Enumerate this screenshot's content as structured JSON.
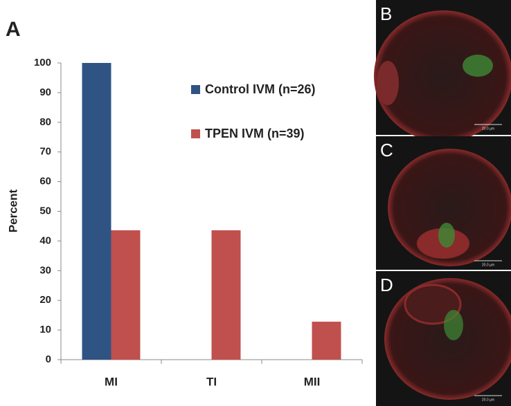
{
  "chart_data": {
    "type": "bar",
    "y_label": "Percent",
    "categories": [
      "MI",
      "TI",
      "MII"
    ],
    "series": [
      {
        "name": "Control IVM (n=26)",
        "color": "#2f5484",
        "values": [
          100,
          0,
          0
        ]
      },
      {
        "name": "TPEN IVM (n=39)",
        "color": "#c0504d",
        "values": [
          43.6,
          43.6,
          12.8
        ]
      }
    ],
    "ylim": [
      0,
      100
    ],
    "yticks": [
      0,
      10,
      20,
      30,
      40,
      50,
      60,
      70,
      80,
      90,
      100
    ],
    "grid": false
  },
  "panels": {
    "labels": [
      "A",
      "B",
      "C",
      "D"
    ],
    "scale_bar": "20.0 µm"
  }
}
